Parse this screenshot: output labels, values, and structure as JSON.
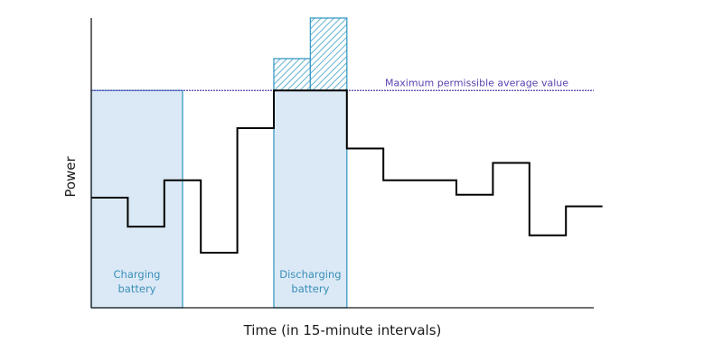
{
  "chart_data": {
    "type": "line",
    "xlabel": "Time (in 15-minute intervals)",
    "ylabel": "Power",
    "max_line_label": "Maximum permissible average value",
    "charging_label": [
      "Charging",
      "battery"
    ],
    "discharging_label": [
      "Discharging",
      "battery"
    ],
    "ylim": [
      0,
      100
    ],
    "max_value": 75,
    "load_profile": [
      {
        "x0": 0,
        "x1": 2,
        "y": 38
      },
      {
        "x0": 2,
        "x1": 4,
        "y": 28
      },
      {
        "x0": 4,
        "x1": 6,
        "y": 44
      },
      {
        "x0": 6,
        "x1": 8,
        "y": 19
      },
      {
        "x0": 8,
        "x1": 10,
        "y": 62
      },
      {
        "x0": 10,
        "x1": 14,
        "y": 75
      },
      {
        "x0": 14,
        "x1": 16,
        "y": 55
      },
      {
        "x0": 16,
        "x1": 20,
        "y": 44
      },
      {
        "x0": 20,
        "x1": 22,
        "y": 39
      },
      {
        "x0": 22,
        "x1": 24,
        "y": 50
      },
      {
        "x0": 24,
        "x1": 26,
        "y": 25
      },
      {
        "x0": 26,
        "x1": 28,
        "y": 35
      }
    ],
    "charging_region": {
      "x0": 0,
      "x1": 5,
      "y": 75
    },
    "discharging_region": {
      "x0": 10,
      "x1": 14,
      "y": 75
    },
    "peak_excess": [
      {
        "x0": 10,
        "x1": 12,
        "y0": 75,
        "y1": 86
      },
      {
        "x0": 12,
        "x1": 14,
        "y0": 75,
        "y1": 100
      }
    ]
  },
  "colors": {
    "axis": "#1a1a1a",
    "profile": "#000000",
    "region_fill": "#dbe9f6",
    "region_stroke": "#3a9cc4",
    "region_text": "#3a8fb8",
    "max_line": "#5b3fb0",
    "hatch": "#3a9cc4"
  }
}
